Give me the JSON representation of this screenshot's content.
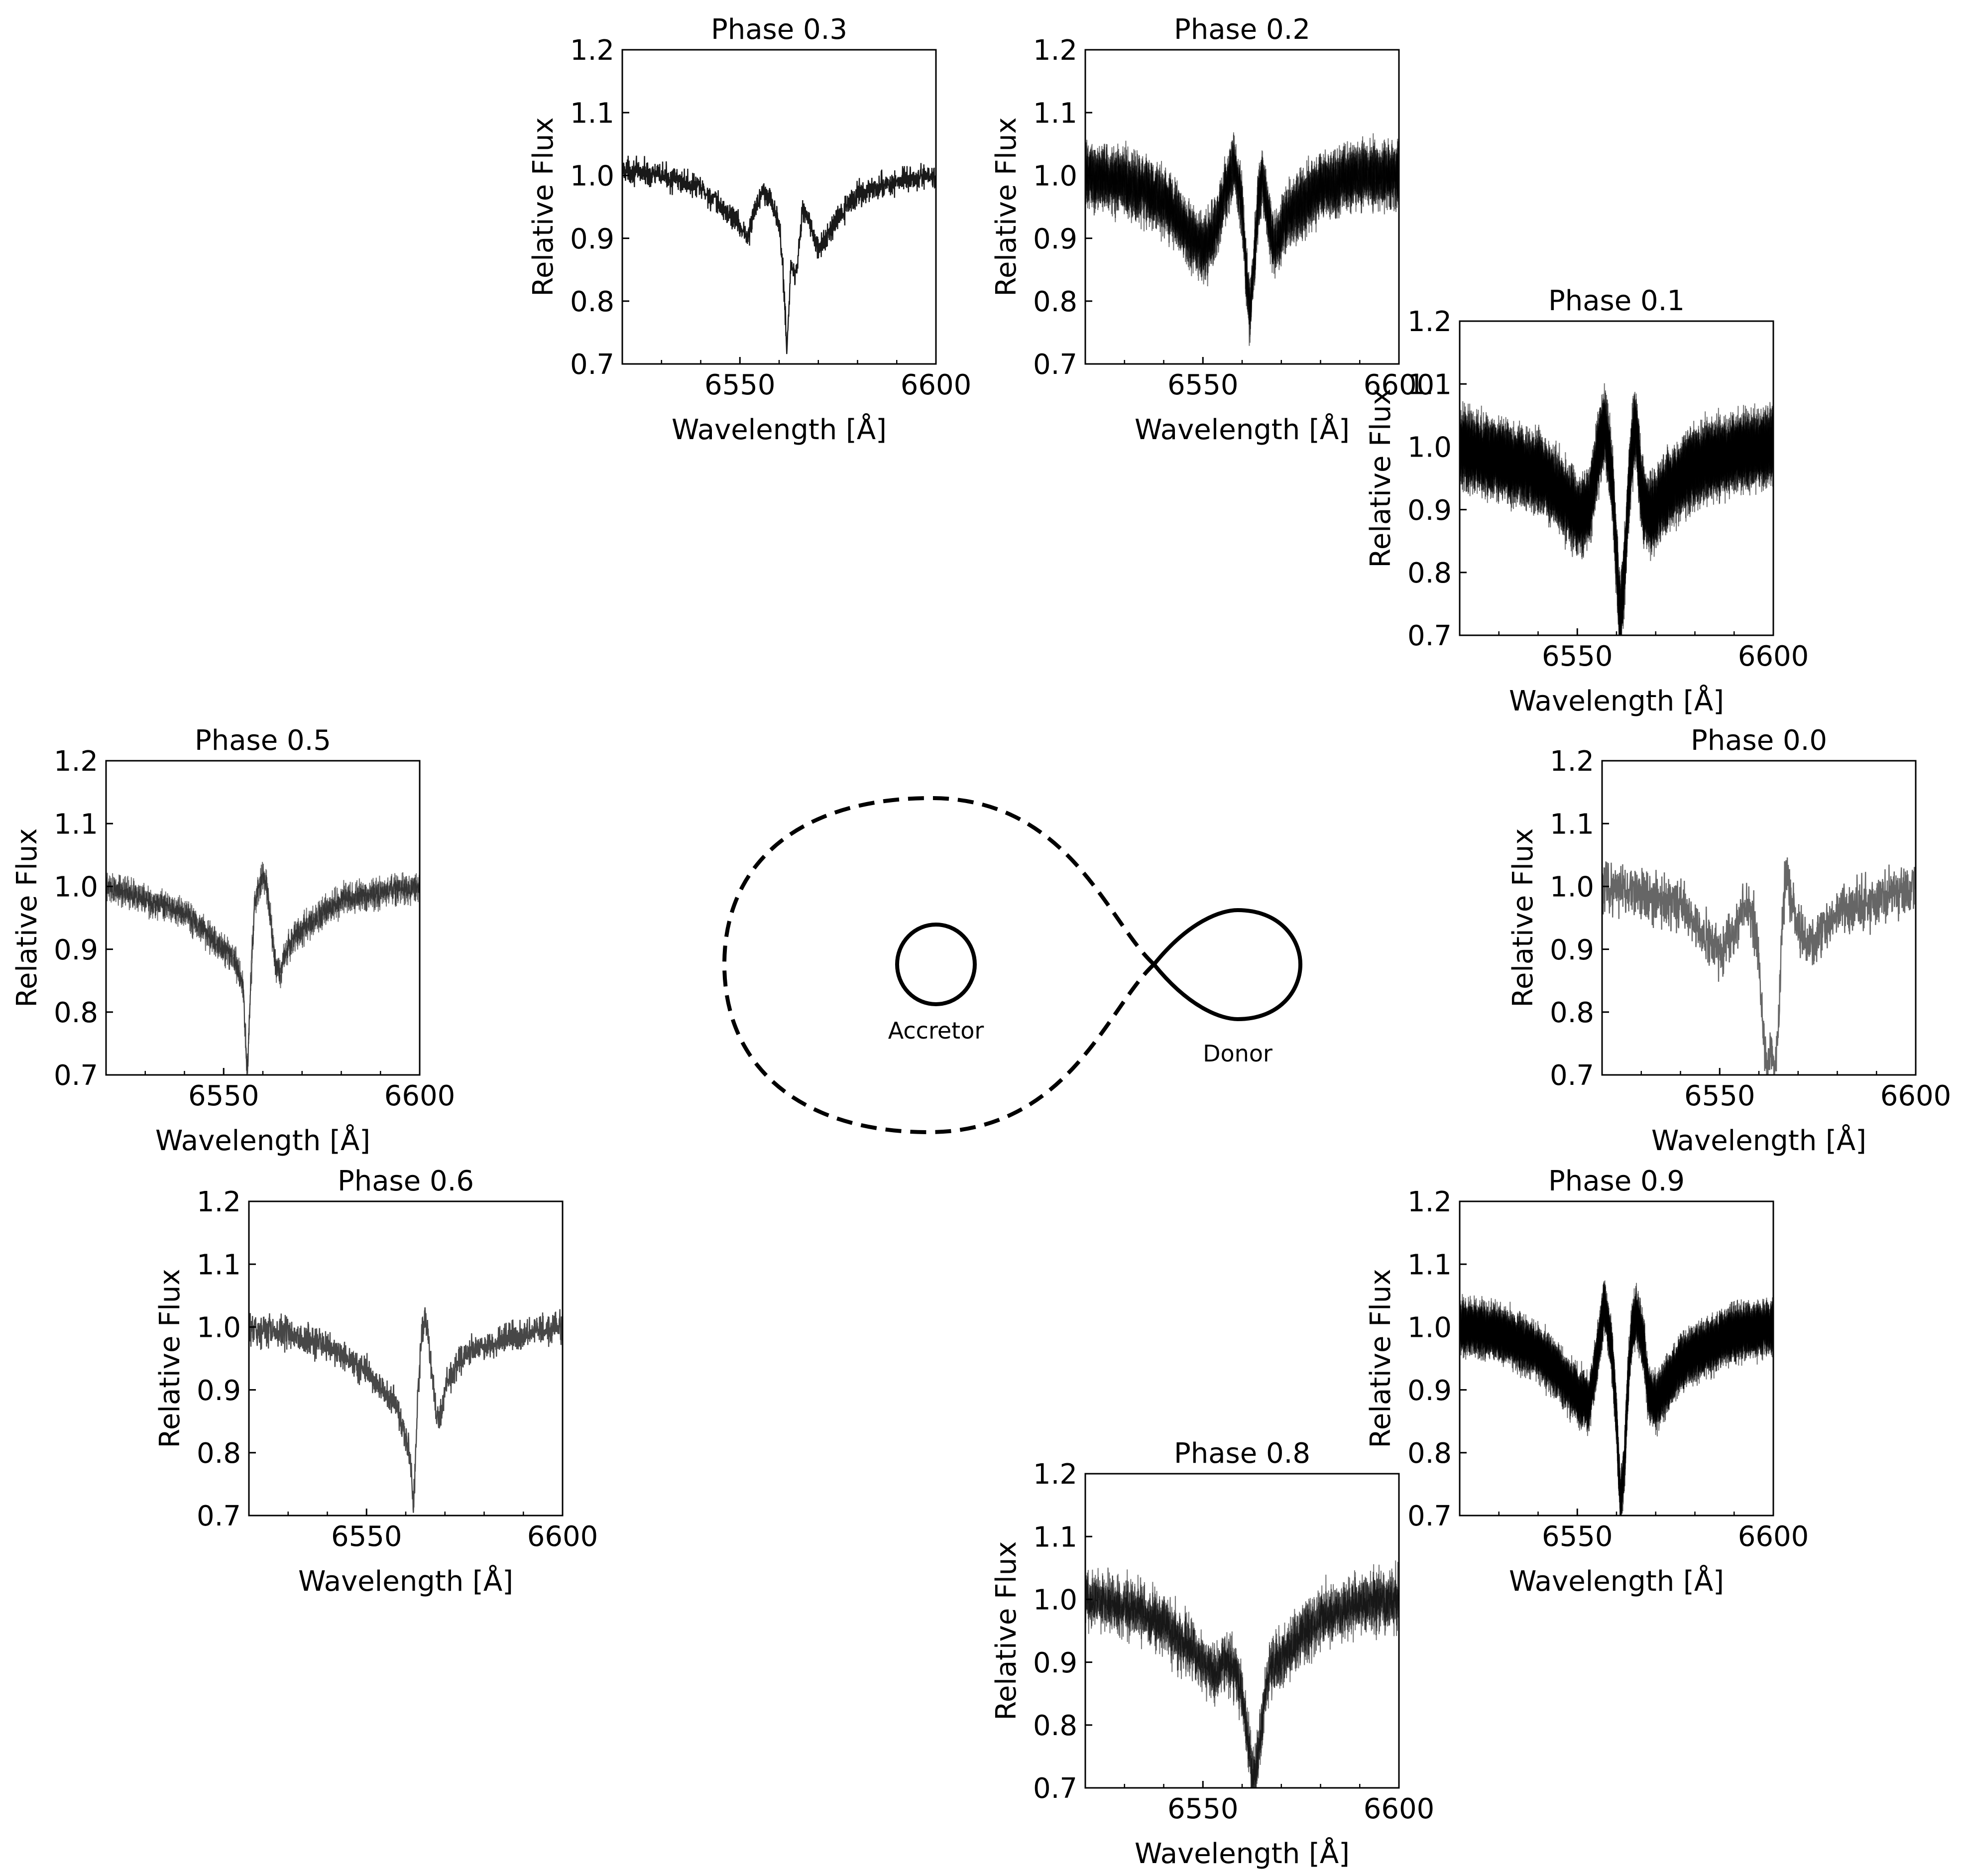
{
  "figure": {
    "diagram": {
      "accretor_label": "Accretor",
      "donor_label": "Donor"
    }
  },
  "chart_data": [
    {
      "type": "line",
      "title": "Phase 0.3",
      "xlabel": "Wavelength [Å]",
      "ylabel": "Relative Flux",
      "xlim": [
        6520,
        6600
      ],
      "ylim": [
        0.7,
        1.2
      ],
      "xticks": [
        6550,
        6600
      ],
      "yticks": [
        0.7,
        0.8,
        0.9,
        1.0,
        1.1,
        1.2
      ],
      "grid": false,
      "series": [
        {
          "color": "#000000",
          "noise": 0.012,
          "overlays": 1,
          "x": [
            6520,
            6530,
            6540,
            6545,
            6549,
            6552,
            6554,
            6556,
            6558,
            6560,
            6561,
            6562,
            6563,
            6564,
            6565,
            6566,
            6568,
            6570,
            6572,
            6576,
            6580,
            6590,
            6600
          ],
          "y": [
            1.01,
            1.0,
            0.98,
            0.95,
            0.93,
            0.9,
            0.95,
            0.98,
            0.96,
            0.92,
            0.85,
            0.72,
            0.86,
            0.84,
            0.88,
            0.95,
            0.92,
            0.88,
            0.9,
            0.94,
            0.97,
            0.99,
            1.0
          ]
        }
      ]
    },
    {
      "type": "line",
      "title": "Phase 0.2",
      "xlabel": "Wavelength [Å]",
      "ylabel": "Relative Flux",
      "xlim": [
        6520,
        6600
      ],
      "ylim": [
        0.7,
        1.2
      ],
      "xticks": [
        6550,
        6600
      ],
      "yticks": [
        0.7,
        0.8,
        0.9,
        1.0,
        1.1,
        1.2
      ],
      "grid": false,
      "series": [
        {
          "color": "#000000",
          "noise": 0.03,
          "overlays": 6,
          "x": [
            6520,
            6530,
            6540,
            6545,
            6550,
            6553,
            6556,
            6558,
            6560,
            6561,
            6562,
            6563,
            6564,
            6565,
            6566,
            6567,
            6568,
            6570,
            6572,
            6576,
            6580,
            6590,
            6600
          ],
          "y": [
            1.0,
            0.99,
            0.96,
            0.92,
            0.88,
            0.91,
            0.98,
            1.02,
            0.95,
            0.85,
            0.78,
            0.86,
            0.95,
            1.0,
            0.96,
            0.92,
            0.89,
            0.91,
            0.94,
            0.96,
            0.98,
            1.0,
            1.0
          ]
        }
      ]
    },
    {
      "type": "line",
      "title": "Phase 0.1",
      "xlabel": "Wavelength [Å]",
      "ylabel": "Relative Flux",
      "xlim": [
        6520,
        6600
      ],
      "ylim": [
        0.7,
        1.2
      ],
      "xticks": [
        6550,
        6600
      ],
      "yticks": [
        0.7,
        0.8,
        0.9,
        1.0,
        1.1,
        1.2
      ],
      "grid": false,
      "series": [
        {
          "color": "#000000",
          "noise": 0.035,
          "overlays": 12,
          "x": [
            6520,
            6530,
            6540,
            6545,
            6550,
            6553,
            6555,
            6557,
            6559,
            6560,
            6561,
            6562,
            6563,
            6564,
            6565,
            6566,
            6567,
            6569,
            6572,
            6576,
            6580,
            6590,
            6600
          ],
          "y": [
            1.0,
            0.98,
            0.96,
            0.93,
            0.89,
            0.9,
            0.98,
            1.04,
            0.94,
            0.82,
            0.72,
            0.8,
            0.92,
            1.0,
            1.04,
            0.95,
            0.9,
            0.89,
            0.92,
            0.95,
            0.97,
            0.99,
            1.0
          ]
        }
      ]
    },
    {
      "type": "line",
      "title": "Phase 0.5",
      "xlabel": "Wavelength [Å]",
      "ylabel": "Relative Flux",
      "xlim": [
        6520,
        6600
      ],
      "ylim": [
        0.7,
        1.2
      ],
      "xticks": [
        6550,
        6600
      ],
      "yticks": [
        0.7,
        0.8,
        0.9,
        1.0,
        1.1,
        1.2
      ],
      "grid": false,
      "series": [
        {
          "color": "#000000",
          "noise": 0.015,
          "overlays": 2,
          "x": [
            6520,
            6530,
            6540,
            6545,
            6550,
            6553,
            6555,
            6556,
            6557,
            6558,
            6560,
            6561,
            6562,
            6563,
            6564,
            6566,
            6568,
            6572,
            6576,
            6580,
            6590,
            6600
          ],
          "y": [
            1.0,
            0.98,
            0.96,
            0.93,
            0.9,
            0.88,
            0.84,
            0.7,
            0.86,
            0.98,
            1.02,
            1.0,
            0.95,
            0.88,
            0.86,
            0.9,
            0.92,
            0.94,
            0.96,
            0.98,
            0.99,
            1.0
          ]
        }
      ]
    },
    {
      "type": "line",
      "title": "Phase 0.0",
      "xlabel": "Wavelength [Å]",
      "ylabel": "Relative Flux",
      "xlim": [
        6520,
        6600
      ],
      "ylim": [
        0.7,
        1.2
      ],
      "xticks": [
        6550,
        6600
      ],
      "yticks": [
        0.7,
        0.8,
        0.9,
        1.0,
        1.1,
        1.2
      ],
      "grid": false,
      "series": [
        {
          "color": "#555555",
          "noise": 0.025,
          "overlays": 1,
          "x": [
            6520,
            6530,
            6540,
            6545,
            6550,
            6553,
            6556,
            6559,
            6561,
            6562,
            6563,
            6564,
            6565,
            6566,
            6567,
            6568,
            6570,
            6573,
            6576,
            6580,
            6590,
            6600
          ],
          "y": [
            1.0,
            0.99,
            0.97,
            0.93,
            0.9,
            0.92,
            0.97,
            0.94,
            0.8,
            0.7,
            0.74,
            0.7,
            0.78,
            0.95,
            1.03,
            0.98,
            0.93,
            0.9,
            0.93,
            0.96,
            0.98,
            1.0
          ]
        }
      ]
    },
    {
      "type": "line",
      "title": "Phase 0.6",
      "xlabel": "Wavelength [Å]",
      "ylabel": "Relative Flux",
      "xlim": [
        6520,
        6600
      ],
      "ylim": [
        0.7,
        1.2
      ],
      "xticks": [
        6550,
        6600
      ],
      "yticks": [
        0.7,
        0.8,
        0.9,
        1.0,
        1.1,
        1.2
      ],
      "grid": false,
      "series": [
        {
          "color": "#333333",
          "noise": 0.015,
          "overlays": 1,
          "x": [
            6520,
            6530,
            6540,
            6545,
            6550,
            6554,
            6558,
            6561,
            6562,
            6563,
            6564,
            6565,
            6566,
            6567,
            6568,
            6569,
            6570,
            6573,
            6576,
            6580,
            6590,
            6600
          ],
          "y": [
            1.0,
            0.99,
            0.97,
            0.95,
            0.93,
            0.9,
            0.87,
            0.8,
            0.71,
            0.88,
            0.98,
            1.02,
            0.98,
            0.9,
            0.85,
            0.86,
            0.9,
            0.94,
            0.96,
            0.97,
            0.99,
            1.0
          ]
        }
      ]
    },
    {
      "type": "line",
      "title": "Phase 0.9",
      "xlabel": "Wavelength [Å]",
      "ylabel": "Relative Flux",
      "xlim": [
        6520,
        6600
      ],
      "ylim": [
        0.7,
        1.2
      ],
      "xticks": [
        6550,
        6600
      ],
      "yticks": [
        0.7,
        0.8,
        0.9,
        1.0,
        1.1,
        1.2
      ],
      "grid": false,
      "series": [
        {
          "color": "#000000",
          "noise": 0.025,
          "overlays": 12,
          "x": [
            6520,
            6530,
            6540,
            6545,
            6550,
            6553,
            6555,
            6557,
            6559,
            6560,
            6561,
            6562,
            6563,
            6564,
            6565,
            6567,
            6568,
            6570,
            6572,
            6576,
            6580,
            6590,
            6600
          ],
          "y": [
            1.0,
            0.99,
            0.96,
            0.93,
            0.89,
            0.88,
            0.95,
            1.04,
            0.95,
            0.85,
            0.72,
            0.78,
            0.92,
            1.0,
            1.02,
            0.97,
            0.9,
            0.88,
            0.9,
            0.94,
            0.96,
            0.99,
            1.0
          ]
        }
      ]
    },
    {
      "type": "line",
      "title": "Phase 0.8",
      "xlabel": "Wavelength [Å]",
      "ylabel": "Relative Flux",
      "xlim": [
        6520,
        6600
      ],
      "ylim": [
        0.7,
        1.2
      ],
      "xticks": [
        6550,
        6600
      ],
      "yticks": [
        0.7,
        0.8,
        0.9,
        1.0,
        1.1,
        1.2
      ],
      "grid": false,
      "series": [
        {
          "color": "#000000",
          "noise": 0.028,
          "overlays": 3,
          "x": [
            6520,
            6530,
            6540,
            6545,
            6550,
            6553,
            6556,
            6558,
            6560,
            6561,
            6562,
            6563,
            6564,
            6565,
            6566,
            6567,
            6569,
            6572,
            6576,
            6580,
            6590,
            6600
          ],
          "y": [
            1.0,
            0.99,
            0.96,
            0.93,
            0.9,
            0.88,
            0.9,
            0.89,
            0.85,
            0.8,
            0.75,
            0.72,
            0.74,
            0.8,
            0.86,
            0.89,
            0.9,
            0.92,
            0.95,
            0.97,
            0.99,
            1.0
          ]
        }
      ]
    }
  ]
}
